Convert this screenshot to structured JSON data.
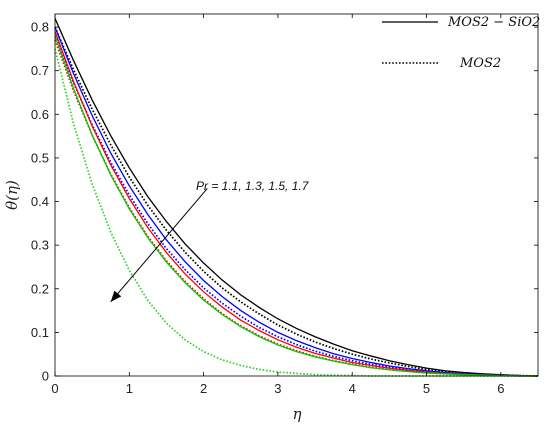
{
  "chart_data": {
    "type": "line",
    "xlabel": "η",
    "ylabel": "θ(η)",
    "xlim": [
      0,
      6.5
    ],
    "ylim": [
      0,
      0.83
    ],
    "xticks": [
      0,
      1,
      2,
      3,
      4,
      5,
      6
    ],
    "yticks": [
      0,
      0.1,
      0.2,
      0.3,
      0.4,
      0.5,
      0.6,
      0.7,
      0.8
    ],
    "grid": false,
    "legend_position": "top-right",
    "legend": [
      {
        "label": "MOS2 − SiO2",
        "style": "solid"
      },
      {
        "label": "MOS2",
        "style": "dotted"
      }
    ],
    "annotation": {
      "text": "Pr = 1.1, 1.3, 1.5, 1.7",
      "arrow_from": [
        2.05,
        0.43
      ],
      "arrow_to": [
        0.75,
        0.17
      ]
    },
    "series": [
      {
        "color": "#000000",
        "style": "solid",
        "x": [
          0,
          0.25,
          0.5,
          0.75,
          1,
          1.25,
          1.5,
          1.75,
          2,
          2.25,
          2.5,
          2.75,
          3,
          3.25,
          3.5,
          3.75,
          4,
          4.25,
          4.5,
          4.75,
          5,
          5.25,
          5.5,
          5.75,
          6,
          6.25,
          6.5
        ],
        "y": [
          0.82,
          0.723,
          0.633,
          0.551,
          0.477,
          0.411,
          0.354,
          0.303,
          0.259,
          0.22,
          0.186,
          0.157,
          0.131,
          0.109,
          0.09,
          0.073,
          0.058,
          0.046,
          0.035,
          0.026,
          0.018,
          0.012,
          0.008,
          0.005,
          0.003,
          0.001,
          0.0
        ]
      },
      {
        "color": "#000000",
        "style": "dotted",
        "x": [
          0,
          0.25,
          0.5,
          0.75,
          1,
          1.25,
          1.5,
          1.75,
          2,
          2.25,
          2.5,
          2.75,
          3,
          3.25,
          3.5,
          3.75,
          4,
          4.25,
          4.5,
          4.75,
          5,
          5.25,
          5.5,
          5.75,
          6,
          6.25,
          6.5
        ],
        "y": [
          0.8,
          0.702,
          0.612,
          0.53,
          0.456,
          0.391,
          0.334,
          0.284,
          0.24,
          0.202,
          0.17,
          0.142,
          0.117,
          0.096,
          0.078,
          0.063,
          0.05,
          0.039,
          0.03,
          0.022,
          0.015,
          0.01,
          0.006,
          0.004,
          0.002,
          0.001,
          0.0
        ]
      },
      {
        "color": "#0000ff",
        "style": "solid",
        "x": [
          0,
          0.25,
          0.5,
          0.75,
          1,
          1.25,
          1.5,
          1.75,
          2,
          2.25,
          2.5,
          2.75,
          3,
          3.25,
          3.5,
          3.75,
          4,
          4.25,
          4.5,
          4.75,
          5,
          5.25,
          5.5,
          5.75,
          6,
          6.25,
          6.5
        ],
        "y": [
          0.8,
          0.693,
          0.597,
          0.511,
          0.436,
          0.37,
          0.312,
          0.262,
          0.219,
          0.182,
          0.15,
          0.123,
          0.1,
          0.081,
          0.065,
          0.051,
          0.04,
          0.031,
          0.023,
          0.017,
          0.012,
          0.008,
          0.005,
          0.003,
          0.002,
          0.001,
          0.0
        ]
      },
      {
        "color": "#0000ff",
        "style": "dotted",
        "x": [
          0,
          0.25,
          0.5,
          0.75,
          1,
          1.25,
          1.5,
          1.75,
          2,
          2.25,
          2.5,
          2.75,
          3,
          3.25,
          3.5,
          3.75,
          4,
          4.25,
          4.5,
          4.75,
          5,
          5.25,
          5.5,
          5.75,
          6,
          6.25,
          6.5
        ],
        "y": [
          0.78,
          0.672,
          0.576,
          0.49,
          0.415,
          0.349,
          0.292,
          0.244,
          0.202,
          0.167,
          0.137,
          0.111,
          0.09,
          0.072,
          0.057,
          0.045,
          0.035,
          0.027,
          0.02,
          0.014,
          0.01,
          0.007,
          0.004,
          0.002,
          0.001,
          0.0,
          0.0
        ]
      },
      {
        "color": "#ff0000",
        "style": "solid",
        "x": [
          0,
          0.25,
          0.5,
          0.75,
          1,
          1.25,
          1.5,
          1.75,
          2,
          2.25,
          2.5,
          2.75,
          3,
          3.25,
          3.5,
          3.75,
          4,
          4.25,
          4.5,
          4.75,
          5,
          5.25,
          5.5,
          5.75,
          6,
          6.25,
          6.5
        ],
        "y": [
          0.79,
          0.675,
          0.573,
          0.484,
          0.407,
          0.34,
          0.283,
          0.234,
          0.193,
          0.158,
          0.128,
          0.104,
          0.083,
          0.066,
          0.052,
          0.041,
          0.031,
          0.024,
          0.018,
          0.013,
          0.009,
          0.006,
          0.004,
          0.002,
          0.001,
          0.0,
          0.0
        ]
      },
      {
        "color": "#ff0000",
        "style": "dotted",
        "x": [
          0,
          0.25,
          0.5,
          0.75,
          1,
          1.25,
          1.5,
          1.75,
          2,
          2.25,
          2.5,
          2.75,
          3,
          3.25,
          3.5,
          3.75,
          4,
          4.25,
          4.5,
          4.75,
          5,
          5.25,
          5.5,
          5.75,
          6,
          6.25,
          6.5
        ],
        "y": [
          0.77,
          0.654,
          0.552,
          0.463,
          0.386,
          0.32,
          0.264,
          0.217,
          0.177,
          0.143,
          0.115,
          0.092,
          0.073,
          0.058,
          0.045,
          0.035,
          0.027,
          0.02,
          0.015,
          0.011,
          0.007,
          0.005,
          0.003,
          0.002,
          0.001,
          0.0,
          0.0
        ]
      },
      {
        "color": "#00c800",
        "style": "solid",
        "x": [
          0,
          0.25,
          0.5,
          0.75,
          1,
          1.25,
          1.5,
          1.75,
          2,
          2.25,
          2.5,
          2.75,
          3,
          3.25,
          3.5,
          3.75,
          4,
          4.25,
          4.5,
          4.75,
          5,
          5.25,
          5.5,
          5.75,
          6,
          6.25,
          6.5
        ],
        "y": [
          0.78,
          0.659,
          0.553,
          0.461,
          0.383,
          0.317,
          0.261,
          0.214,
          0.174,
          0.141,
          0.113,
          0.09,
          0.071,
          0.056,
          0.044,
          0.034,
          0.026,
          0.019,
          0.014,
          0.01,
          0.007,
          0.005,
          0.003,
          0.002,
          0.001,
          0.0,
          0.0
        ]
      },
      {
        "color": "#2bd42b",
        "style": "dotted",
        "x": [
          0,
          0.25,
          0.5,
          0.75,
          1,
          1.25,
          1.5,
          1.75,
          2,
          2.25,
          2.5,
          2.75,
          3,
          3.25,
          3.5,
          3.75,
          4,
          4.25,
          4.5,
          4.75,
          5,
          5.25,
          5.5,
          5.75,
          6,
          6.25,
          6.5
        ],
        "y": [
          0.75,
          0.578,
          0.44,
          0.33,
          0.242,
          0.173,
          0.121,
          0.083,
          0.056,
          0.037,
          0.024,
          0.015,
          0.009,
          0.006,
          0.003,
          0.002,
          0.001,
          0.0,
          0.0,
          0.0,
          0.0,
          0.0,
          0.0,
          0.0,
          0.0,
          0.0,
          0.0
        ]
      }
    ]
  }
}
